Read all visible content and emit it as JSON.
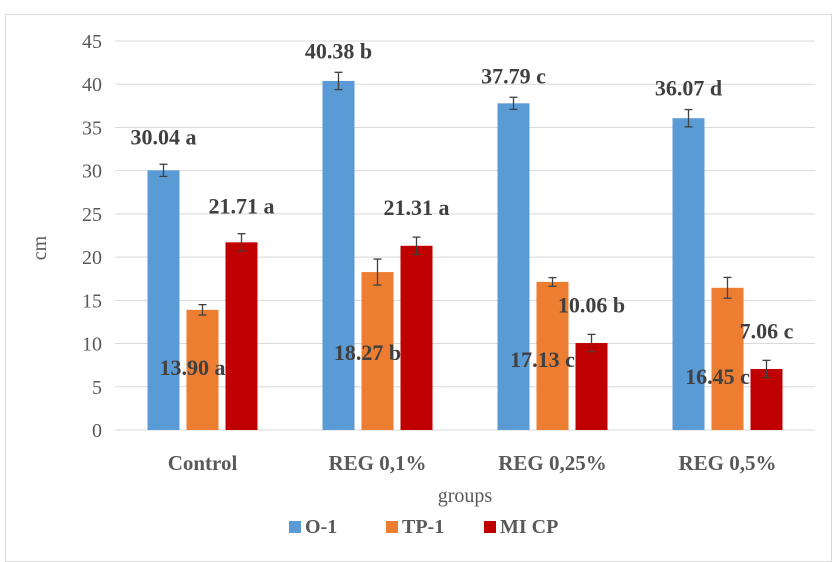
{
  "chart_data": {
    "type": "bar",
    "title": "",
    "xlabel": "groups",
    "ylabel": "cm",
    "ylim": [
      0,
      45
    ],
    "yticks": [
      0,
      5,
      10,
      15,
      20,
      25,
      30,
      35,
      40,
      45
    ],
    "grid": true,
    "legend_position": "bottom",
    "categories": [
      "Control",
      "REG 0,1%",
      "REG 0,25%",
      "REG 0,5%"
    ],
    "series": [
      {
        "name": "O-1",
        "color": "#5B9BD5",
        "values": [
          30.04,
          40.38,
          37.79,
          36.07
        ],
        "errors": [
          0.7,
          1.0,
          0.7,
          1.0
        ],
        "labels": [
          "30.04 a",
          "40.38 b",
          "37.79 c",
          "36.07 d"
        ]
      },
      {
        "name": "TP-1",
        "color": "#ED7D31",
        "values": [
          13.9,
          18.27,
          17.13,
          16.45
        ],
        "errors": [
          0.6,
          1.5,
          0.5,
          1.2
        ],
        "labels": [
          "13.90 a",
          "18.27 b",
          "17.13 c",
          "16.45 c"
        ]
      },
      {
        "name": "MI CP",
        "color": "#C00000",
        "values": [
          21.71,
          21.31,
          10.06,
          7.06
        ],
        "errors": [
          1.0,
          1.0,
          1.0,
          1.0
        ],
        "labels": [
          "21.71 a",
          "21.31 a",
          "10.06 b",
          "7.06 c"
        ]
      }
    ]
  }
}
